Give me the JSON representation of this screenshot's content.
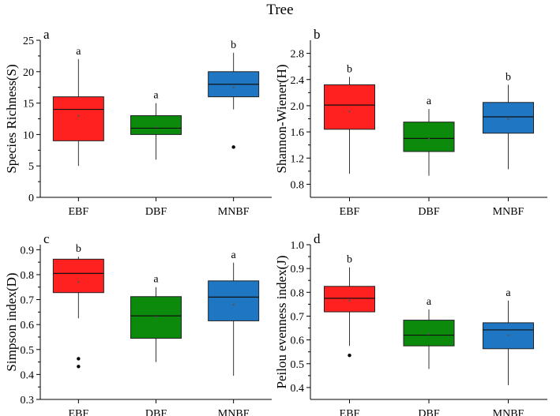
{
  "figure": {
    "title": "Tree"
  },
  "colors": {
    "EBF": "#ff2020",
    "DBF": "#0b8a0b",
    "MNBF": "#1f77c4",
    "axis": "#000000"
  },
  "chart_data": [
    {
      "type": "box",
      "panel_label": "a",
      "title": "",
      "ylabel": "Species Richness(S)",
      "xlabel": "",
      "categories": [
        "EBF",
        "DBF",
        "MNBF"
      ],
      "ylim": [
        0,
        25
      ],
      "yticks": [
        0,
        5,
        10,
        15,
        20,
        25
      ],
      "ytick_labels": [
        "0",
        "5",
        "10",
        "15",
        "20",
        "25"
      ],
      "boxes": [
        {
          "category": "EBF",
          "whisker_low": 5,
          "q1": 9,
          "median": 14,
          "mean": 13,
          "q3": 16,
          "whisker_high": 22,
          "outliers": [],
          "letter": "a"
        },
        {
          "category": "DBF",
          "whisker_low": 6,
          "q1": 10,
          "median": 11,
          "mean": 11.2,
          "q3": 13,
          "whisker_high": 15,
          "outliers": [],
          "letter": "a"
        },
        {
          "category": "MNBF",
          "whisker_low": 14,
          "q1": 16,
          "median": 18,
          "mean": 17.5,
          "q3": 20,
          "whisker_high": 23,
          "outliers": [
            8
          ],
          "letter": "b"
        }
      ]
    },
    {
      "type": "box",
      "panel_label": "b",
      "title": "",
      "ylabel": "Shannon-Wiener(H)",
      "xlabel": "",
      "categories": [
        "EBF",
        "DBF",
        "MNBF"
      ],
      "ylim": [
        0.6,
        3.0
      ],
      "yticks": [
        0.8,
        1.2,
        1.6,
        2.0,
        2.4,
        2.8
      ],
      "ytick_labels": [
        "0.8",
        "1.2",
        "1.6",
        "2.0",
        "2.4",
        "2.8"
      ],
      "boxes": [
        {
          "category": "EBF",
          "whisker_low": 0.96,
          "q1": 1.64,
          "median": 2.01,
          "mean": 1.91,
          "q3": 2.32,
          "whisker_high": 2.44,
          "outliers": [],
          "letter": "b"
        },
        {
          "category": "DBF",
          "whisker_low": 0.93,
          "q1": 1.3,
          "median": 1.5,
          "mean": 1.49,
          "q3": 1.75,
          "whisker_high": 1.95,
          "outliers": [],
          "letter": "a"
        },
        {
          "category": "MNBF",
          "whisker_low": 1.03,
          "q1": 1.58,
          "median": 1.83,
          "mean": 1.8,
          "q3": 2.05,
          "whisker_high": 2.32,
          "outliers": [],
          "letter": "b"
        }
      ]
    },
    {
      "type": "box",
      "panel_label": "c",
      "title": "",
      "ylabel": "Simpson index(D)",
      "xlabel": "",
      "categories": [
        "EBF",
        "DBF",
        "MNBF"
      ],
      "ylim": [
        0.3,
        0.92
      ],
      "yticks": [
        0.3,
        0.4,
        0.5,
        0.6,
        0.7,
        0.8,
        0.9
      ],
      "ytick_labels": [
        "0.3",
        "0.4",
        "0.5",
        "0.6",
        "0.7",
        "0.8",
        "0.9"
      ],
      "boxes": [
        {
          "category": "EBF",
          "whisker_low": 0.625,
          "q1": 0.728,
          "median": 0.805,
          "mean": 0.77,
          "q3": 0.862,
          "whisker_high": 0.872,
          "outliers": [
            0.463,
            0.432
          ],
          "letter": "b"
        },
        {
          "category": "DBF",
          "whisker_low": 0.45,
          "q1": 0.545,
          "median": 0.635,
          "mean": 0.63,
          "q3": 0.712,
          "whisker_high": 0.75,
          "outliers": [],
          "letter": "a"
        },
        {
          "category": "MNBF",
          "whisker_low": 0.395,
          "q1": 0.615,
          "median": 0.71,
          "mean": 0.68,
          "q3": 0.775,
          "whisker_high": 0.848,
          "outliers": [],
          "letter": "a"
        }
      ]
    },
    {
      "type": "box",
      "panel_label": "d",
      "title": "",
      "ylabel": "Peilou evenness index(J)",
      "xlabel": "",
      "categories": [
        "EBF",
        "DBF",
        "MNBF"
      ],
      "ylim": [
        0.35,
        1.0
      ],
      "yticks": [
        0.4,
        0.5,
        0.6,
        0.7,
        0.8,
        0.9,
        1.0
      ],
      "ytick_labels": [
        "0.4",
        "0.5",
        "0.6",
        "0.7",
        "0.8",
        "0.9",
        "1.0"
      ],
      "boxes": [
        {
          "category": "EBF",
          "whisker_low": 0.575,
          "q1": 0.718,
          "median": 0.775,
          "mean": 0.765,
          "q3": 0.825,
          "whisker_high": 0.905,
          "outliers": [
            0.535
          ],
          "letter": "b"
        },
        {
          "category": "DBF",
          "whisker_low": 0.478,
          "q1": 0.575,
          "median": 0.62,
          "mean": 0.625,
          "q3": 0.683,
          "whisker_high": 0.728,
          "outliers": [],
          "letter": "a"
        },
        {
          "category": "MNBF",
          "whisker_low": 0.41,
          "q1": 0.563,
          "median": 0.642,
          "mean": 0.62,
          "q3": 0.672,
          "whisker_high": 0.765,
          "outliers": [],
          "letter": "a"
        }
      ]
    }
  ]
}
